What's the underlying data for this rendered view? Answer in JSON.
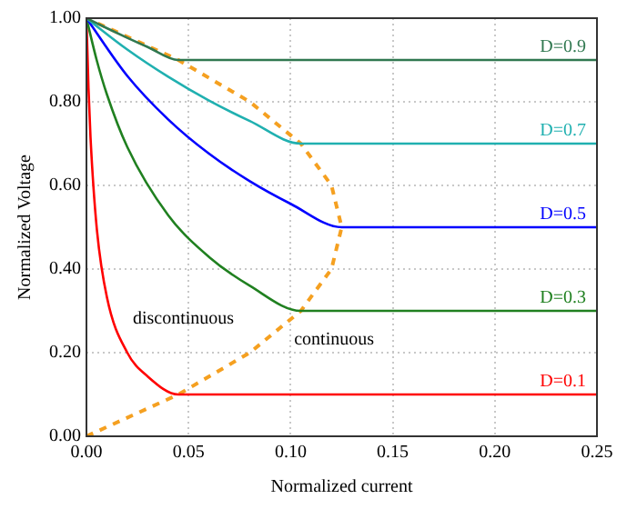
{
  "chart_data": {
    "type": "line",
    "xlabel": "Normalized current",
    "ylabel": "Normalized Voltage",
    "xlim": [
      0,
      0.25
    ],
    "ylim": [
      0,
      1
    ],
    "xticks": [
      {
        "value": 0,
        "label": "0.00"
      },
      {
        "value": 0.05,
        "label": "0.05"
      },
      {
        "value": 0.1,
        "label": "0.10"
      },
      {
        "value": 0.15,
        "label": "0.15"
      },
      {
        "value": 0.2,
        "label": "0.20"
      },
      {
        "value": 0.25,
        "label": "0.25"
      }
    ],
    "yticks": [
      {
        "value": 0,
        "label": "0.00"
      },
      {
        "value": 0.2,
        "label": "0.20"
      },
      {
        "value": 0.4,
        "label": "0.40"
      },
      {
        "value": 0.6,
        "label": "0.60"
      },
      {
        "value": 0.8,
        "label": "0.80"
      },
      {
        "value": 1,
        "label": "1.00"
      }
    ],
    "grid": true,
    "legend": false,
    "marker": "none",
    "series": [
      {
        "name": "D=0.9",
        "color": "#307850",
        "x": [
          0,
          0.01,
          0.02,
          0.03,
          0.045,
          0.25
        ],
        "values": [
          1,
          0.976,
          0.953,
          0.931,
          0.9,
          0.9
        ]
      },
      {
        "name": "D=0.7",
        "color": "#20b0b0",
        "x": [
          0,
          0.02,
          0.04,
          0.06,
          0.08,
          0.105,
          0.25
        ],
        "values": [
          1,
          0.925,
          0.86,
          0.803,
          0.754,
          0.7,
          0.7
        ]
      },
      {
        "name": "D=0.5",
        "color": "#0000ff",
        "x": [
          0,
          0.02,
          0.04,
          0.06,
          0.08,
          0.1,
          0.125,
          0.25
        ],
        "values": [
          1,
          0.862,
          0.758,
          0.676,
          0.61,
          0.556,
          0.5,
          0.5
        ]
      },
      {
        "name": "D=0.3",
        "color": "#208020",
        "x": [
          0,
          0.005,
          0.01,
          0.02,
          0.04,
          0.06,
          0.08,
          0.105,
          0.25
        ],
        "values": [
          1,
          0.9,
          0.818,
          0.692,
          0.529,
          0.429,
          0.36,
          0.3,
          0.3
        ]
      },
      {
        "name": "D=0.1",
        "color": "#ff0000",
        "x": [
          0,
          0.001,
          0.002,
          0.005,
          0.01,
          0.02,
          0.03,
          0.045,
          0.25
        ],
        "values": [
          1,
          0.833,
          0.714,
          0.5,
          0.333,
          0.2,
          0.143,
          0.1,
          0.1
        ]
      },
      {
        "color": "#f5a020",
        "line_style": "dashed",
        "x": [
          0,
          0.045,
          0.08,
          0.105,
          0.12,
          0.125,
          0.12,
          0.105,
          0.08,
          0.045,
          0
        ],
        "values": [
          0,
          0.1,
          0.2,
          0.3,
          0.4,
          0.5,
          0.6,
          0.7,
          0.8,
          0.9,
          1
        ]
      }
    ],
    "annotations": [
      "discontinuous",
      "continuous"
    ]
  }
}
